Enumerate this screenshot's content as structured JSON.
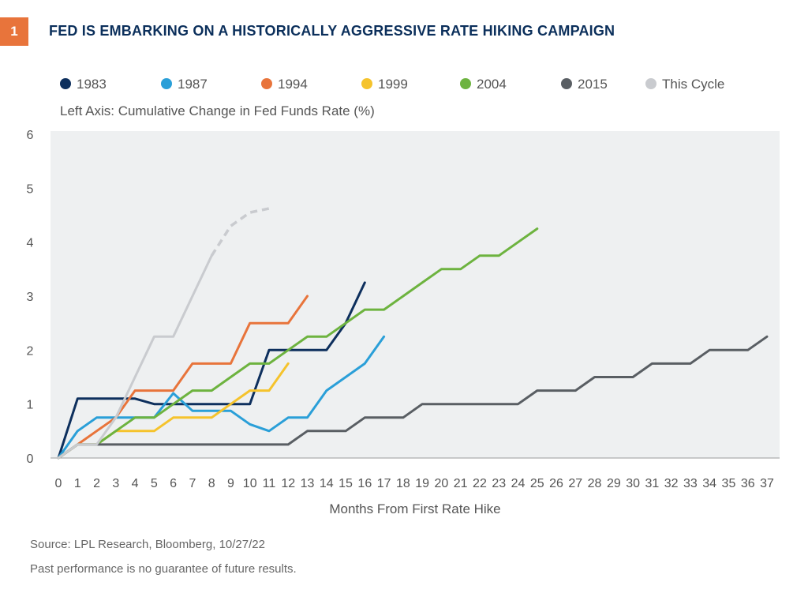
{
  "figure": {
    "number": "1",
    "title": "FED IS EMBARKING ON A HISTORICALLY AGGRESSIVE RATE HIKING CAMPAIGN"
  },
  "footer": {
    "source": "Source: LPL Research, Bloomberg,  10/27/22",
    "disclaimer": "Past performance is no guarantee of future results."
  },
  "chart_data": {
    "type": "line",
    "ylabel": "Left Axis: Cumulative Change in Fed Funds Rate (%)",
    "xlabel": "Months From First Rate Hike",
    "xlim": [
      0,
      37
    ],
    "ylim": [
      0,
      6
    ],
    "x_ticks": [
      "0",
      "1",
      "2",
      "3",
      "4",
      "5",
      "6",
      "7",
      "8",
      "9",
      "10",
      "11",
      "12",
      "13",
      "14",
      "15",
      "16",
      "17",
      "18",
      "19",
      "20",
      "21",
      "22",
      "23",
      "24",
      "25",
      "26",
      "27",
      "28",
      "29",
      "30",
      "31",
      "32",
      "33",
      "34",
      "35",
      "36",
      "37"
    ],
    "y_ticks": [
      "0",
      "1",
      "2",
      "3",
      "4",
      "5",
      "6"
    ],
    "grid": false,
    "plot_background": "#eef0f1",
    "legend_position": "top",
    "series": [
      {
        "name": "1983",
        "color": "#0d2f5d",
        "dashed_after": null,
        "x": [
          0,
          1,
          2,
          3,
          4,
          5,
          6,
          7,
          8,
          9,
          10,
          11,
          12,
          13,
          14,
          15,
          16
        ],
        "y": [
          0,
          1.1,
          1.1,
          1.1,
          1.1,
          1.0,
          1.0,
          1.0,
          1.0,
          1.0,
          1.0,
          2.0,
          2.0,
          2.0,
          2.0,
          2.5,
          3.25
        ]
      },
      {
        "name": "1987",
        "color": "#2a9fd8",
        "dashed_after": null,
        "x": [
          0,
          1,
          2,
          3,
          4,
          5,
          6,
          7,
          8,
          9,
          10,
          11,
          12,
          13,
          14,
          15,
          16,
          17
        ],
        "y": [
          0,
          0.5,
          0.75,
          0.75,
          0.75,
          0.75,
          1.2,
          0.875,
          0.875,
          0.875,
          0.625,
          0.5,
          0.75,
          0.75,
          1.25,
          1.5,
          1.75,
          2.25
        ]
      },
      {
        "name": "1994",
        "color": "#e8743b",
        "dashed_after": null,
        "x": [
          0,
          1,
          2,
          3,
          4,
          5,
          6,
          7,
          8,
          9,
          10,
          11,
          12,
          13
        ],
        "y": [
          0,
          0.25,
          0.5,
          0.75,
          1.25,
          1.25,
          1.25,
          1.75,
          1.75,
          1.75,
          2.5,
          2.5,
          2.5,
          3.0
        ]
      },
      {
        "name": "1999",
        "color": "#f5c32c",
        "dashed_after": null,
        "x": [
          0,
          1,
          2,
          3,
          4,
          5,
          6,
          7,
          8,
          9,
          10,
          11,
          12
        ],
        "y": [
          0,
          0.25,
          0.25,
          0.5,
          0.5,
          0.5,
          0.75,
          0.75,
          0.75,
          1.0,
          1.25,
          1.25,
          1.75
        ]
      },
      {
        "name": "2004",
        "color": "#6db33f",
        "dashed_after": null,
        "x": [
          0,
          1,
          2,
          3,
          4,
          5,
          6,
          7,
          8,
          9,
          10,
          11,
          12,
          13,
          14,
          15,
          16,
          17,
          18,
          19,
          20,
          21,
          22,
          23,
          24,
          25
        ],
        "y": [
          0,
          0.25,
          0.25,
          0.5,
          0.75,
          0.75,
          1.0,
          1.25,
          1.25,
          1.5,
          1.75,
          1.75,
          2.0,
          2.25,
          2.25,
          2.5,
          2.75,
          2.75,
          3.0,
          3.25,
          3.5,
          3.5,
          3.75,
          3.75,
          4.0,
          4.25
        ]
      },
      {
        "name": "2015",
        "color": "#595e63",
        "dashed_after": null,
        "x": [
          0,
          1,
          2,
          3,
          4,
          5,
          6,
          7,
          8,
          9,
          10,
          11,
          12,
          13,
          14,
          15,
          16,
          17,
          18,
          19,
          20,
          21,
          22,
          23,
          24,
          25,
          26,
          27,
          28,
          29,
          30,
          31,
          32,
          33,
          34,
          35,
          36,
          37
        ],
        "y": [
          0,
          0.25,
          0.25,
          0.25,
          0.25,
          0.25,
          0.25,
          0.25,
          0.25,
          0.25,
          0.25,
          0.25,
          0.25,
          0.5,
          0.5,
          0.5,
          0.75,
          0.75,
          0.75,
          1.0,
          1.0,
          1.0,
          1.0,
          1.0,
          1.0,
          1.25,
          1.25,
          1.25,
          1.5,
          1.5,
          1.5,
          1.75,
          1.75,
          1.75,
          2.0,
          2.0,
          2.0,
          2.25
        ]
      },
      {
        "name": "This Cycle",
        "color": "#c9cbcf",
        "dashed_after": 8,
        "x": [
          0,
          1,
          2,
          3,
          4,
          5,
          6,
          7,
          8,
          9,
          10,
          11
        ],
        "y": [
          0,
          0.25,
          0.25,
          0.75,
          1.5,
          2.25,
          2.25,
          3.0,
          3.75,
          4.3,
          4.55,
          4.625
        ]
      }
    ]
  }
}
